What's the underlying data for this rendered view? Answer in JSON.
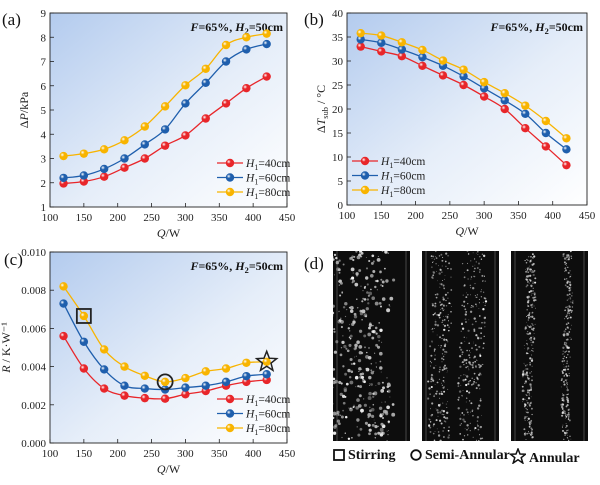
{
  "panel_labels": [
    "(a)",
    "(b)",
    "(c)",
    "(d)"
  ],
  "colors": {
    "H1_40": "#e8262a",
    "H1_60": "#1f5fad",
    "H1_80": "#f8b400"
  },
  "chart_data": [
    {
      "type": "line",
      "panel": "(a)",
      "annotation": "F=65%, H2=50cm",
      "xlabel": "Q/W",
      "ylabel": "ΔP/kPa",
      "xlim": [
        100,
        450
      ],
      "ylim": [
        1,
        9
      ],
      "xticks": [
        100,
        150,
        200,
        250,
        300,
        350,
        400,
        450
      ],
      "yticks": [
        1,
        2,
        3,
        4,
        5,
        6,
        7,
        8,
        9
      ],
      "legend": "bottom-right",
      "x": [
        120,
        150,
        180,
        210,
        240,
        270,
        300,
        330,
        360,
        390,
        420
      ],
      "series": [
        {
          "name": "H1=40cm",
          "color": "#e8262a",
          "values": [
            1.97,
            2.05,
            2.25,
            2.62,
            3.0,
            3.53,
            3.95,
            4.65,
            5.27,
            5.9,
            6.38
          ]
        },
        {
          "name": "H1=60cm",
          "color": "#1f5fad",
          "values": [
            2.2,
            2.3,
            2.57,
            3.0,
            3.58,
            4.2,
            5.27,
            6.12,
            7.0,
            7.5,
            7.72
          ]
        },
        {
          "name": "H1=80cm",
          "color": "#f8b400",
          "values": [
            3.1,
            3.2,
            3.38,
            3.75,
            4.32,
            5.15,
            6.02,
            6.7,
            7.68,
            8.0,
            8.15
          ]
        }
      ]
    },
    {
      "type": "line",
      "panel": "(b)",
      "annotation": "F=65%, H2=50cm",
      "xlabel": "Q/W",
      "ylabel": "ΔTsub / °C",
      "xlim": [
        100,
        450
      ],
      "ylim": [
        0,
        40
      ],
      "xticks": [
        100,
        150,
        200,
        250,
        300,
        350,
        400,
        450
      ],
      "yticks": [
        0,
        5,
        10,
        15,
        20,
        25,
        30,
        35,
        40
      ],
      "legend": "bottom-left",
      "x": [
        120,
        150,
        180,
        210,
        240,
        270,
        300,
        330,
        360,
        390,
        420
      ],
      "series": [
        {
          "name": "H1=40cm",
          "color": "#e8262a",
          "values": [
            33.0,
            32.0,
            31.0,
            29.0,
            27.0,
            25.0,
            22.6,
            20.0,
            16.0,
            12.2,
            8.3
          ]
        },
        {
          "name": "H1=60cm",
          "color": "#1f5fad",
          "values": [
            34.5,
            33.8,
            32.4,
            30.8,
            29.0,
            26.8,
            24.3,
            21.8,
            19.0,
            15.0,
            11.6
          ]
        },
        {
          "name": "H1=80cm",
          "color": "#f8b400",
          "values": [
            35.8,
            35.3,
            33.9,
            32.3,
            30.1,
            28.2,
            25.6,
            23.3,
            20.7,
            17.5,
            13.9
          ]
        }
      ]
    },
    {
      "type": "line",
      "panel": "(c)",
      "annotation": "F=65%, H2=50cm",
      "xlabel": "Q/W",
      "ylabel": "R / K·W⁻¹",
      "xlim": [
        100,
        450
      ],
      "ylim": [
        0,
        0.01
      ],
      "xticks": [
        100,
        150,
        200,
        250,
        300,
        350,
        400,
        450
      ],
      "yticks": [
        "0.000",
        "0.002",
        "0.004",
        "0.006",
        "0.008",
        "0.010"
      ],
      "legend": "bottom-right",
      "x": [
        120,
        150,
        180,
        210,
        240,
        270,
        300,
        330,
        360,
        390,
        420
      ],
      "series": [
        {
          "name": "H1=40cm",
          "color": "#e8262a",
          "values": [
            0.0056,
            0.0039,
            0.00285,
            0.00248,
            0.00235,
            0.00232,
            0.00255,
            0.00272,
            0.003,
            0.0032,
            0.0033
          ]
        },
        {
          "name": "H1=60cm",
          "color": "#1f5fad",
          "values": [
            0.0073,
            0.0053,
            0.00385,
            0.003,
            0.00285,
            0.0028,
            0.0029,
            0.003,
            0.0032,
            0.0035,
            0.0036
          ]
        },
        {
          "name": "H1=80cm",
          "color": "#f8b400",
          "values": [
            0.0082,
            0.00665,
            0.0049,
            0.004,
            0.00352,
            0.0032,
            0.0034,
            0.00375,
            0.0039,
            0.0042,
            0.00425
          ]
        }
      ],
      "markers": [
        {
          "shape": "square",
          "label": "Stirring",
          "x": 150,
          "y": 0.00665
        },
        {
          "shape": "circle",
          "label": "Semi-Annular",
          "x": 270,
          "y": 0.0032
        },
        {
          "shape": "star",
          "label": "Annular",
          "x": 420,
          "y": 0.00425
        }
      ]
    }
  ],
  "flow_patterns": {
    "legend": [
      {
        "icon": "square-icon",
        "label": "Stirring"
      },
      {
        "icon": "circle-icon",
        "label": "Semi-Annular"
      },
      {
        "icon": "star-icon",
        "label": "Annular"
      }
    ]
  }
}
